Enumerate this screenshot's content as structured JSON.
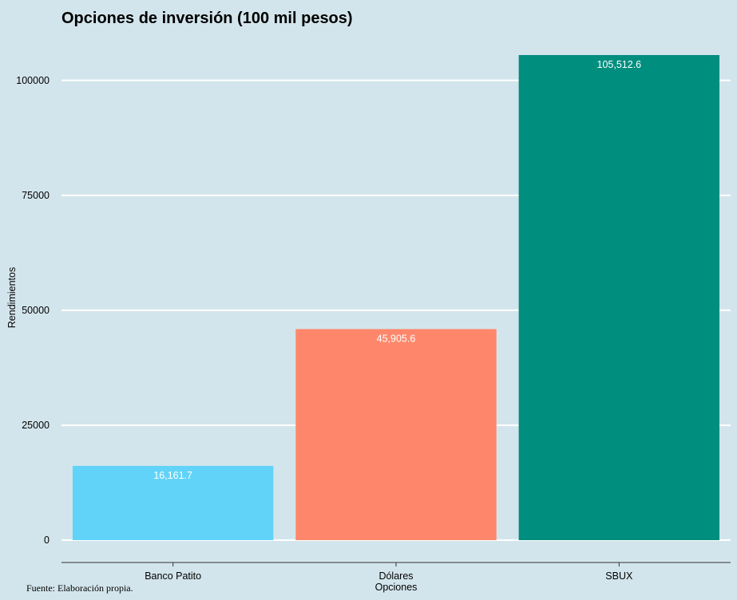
{
  "chart_data": {
    "type": "bar",
    "title": "Opciones de inversión (100 mil pesos)",
    "xlabel": "Opciones",
    "ylabel": "Rendimientos",
    "categories": [
      "Banco Patito",
      "Dólares",
      "SBUX"
    ],
    "values": [
      16161.7,
      45905.6,
      105512.6
    ],
    "value_labels": [
      "16,161.7",
      "45,905.6",
      "105,512.6"
    ],
    "colors": [
      "#62d3f8",
      "#fe876b",
      "#008e7e"
    ],
    "yticks": [
      0,
      25000,
      50000,
      75000,
      100000
    ],
    "ytick_labels": [
      "0",
      "25000",
      "50000",
      "75000",
      "100000"
    ],
    "ylim": [
      0,
      105512.6
    ],
    "grid": "horizontal major lines",
    "legend": "none"
  },
  "caption": "Fuente: Elaboración propia.",
  "colors": {
    "background": "#d3e5ec",
    "gridline": "#ffffff",
    "axis": "#333333"
  }
}
